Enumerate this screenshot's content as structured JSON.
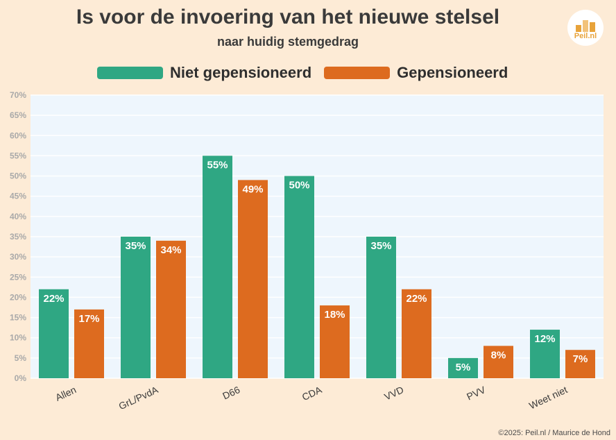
{
  "header": {
    "title": "Is voor de invoering van het nieuwe stelsel",
    "subtitle": "naar huidig stemgedrag",
    "logo_text": "Peil.nl"
  },
  "footer": {
    "credit": "©2025: Peil.nl / Maurice de Hond"
  },
  "colors": {
    "background": "#fdebd6",
    "plot_bg": "#eef6fd",
    "series1": "#2fa783",
    "series2": "#dd6b1f"
  },
  "chart_data": {
    "type": "bar",
    "categories": [
      "Allen",
      "GrL/PvdA",
      "D66",
      "CDA",
      "VVD",
      "PVV",
      "Weet niet"
    ],
    "series": [
      {
        "name": "Niet gepensioneerd",
        "values": [
          22,
          35,
          55,
          50,
          35,
          5,
          12
        ],
        "labels": [
          "22%",
          "35%",
          "55%",
          "50%",
          "35%",
          "5%",
          "12%"
        ]
      },
      {
        "name": "Gepensioneerd",
        "values": [
          17,
          34,
          49,
          18,
          22,
          8,
          7
        ],
        "labels": [
          "17%",
          "34%",
          "49%",
          "18%",
          "22%",
          "8%",
          "7%"
        ]
      }
    ],
    "ylim": [
      0,
      70
    ],
    "yticks": [
      "0%",
      "5%",
      "10%",
      "15%",
      "20%",
      "25%",
      "30%",
      "35%",
      "40%",
      "45%",
      "50%",
      "55%",
      "60%",
      "65%",
      "70%"
    ],
    "grid": true,
    "legend": "top"
  }
}
